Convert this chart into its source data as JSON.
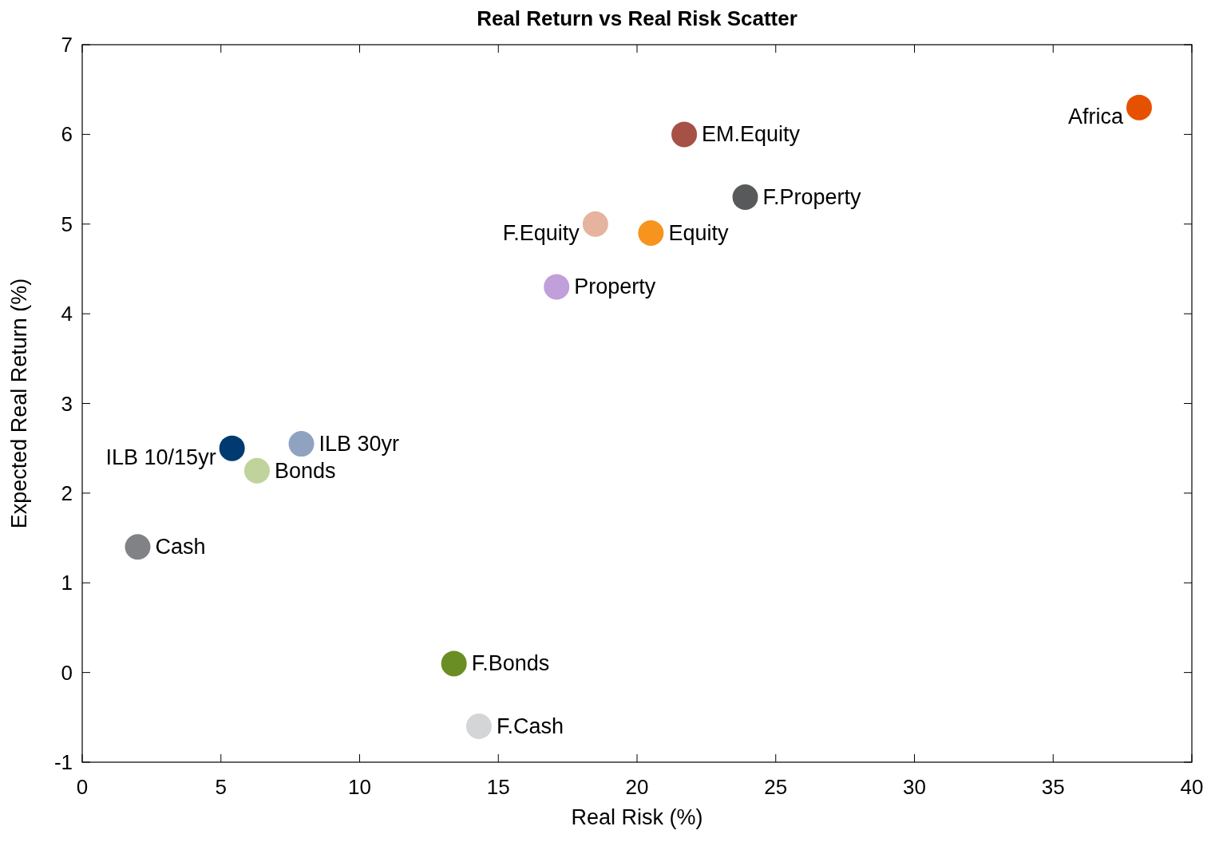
{
  "chart_data": {
    "type": "scatter",
    "title": "Real Return vs Real Risk Scatter",
    "xlabel": "Real Risk (%)",
    "ylabel": "Expected Real Return (%)",
    "xlim": [
      0,
      40
    ],
    "xticks": [
      0,
      5,
      10,
      15,
      20,
      25,
      30,
      35,
      40
    ],
    "ylim": [
      -1,
      7
    ],
    "yticks": [
      -1,
      0,
      1,
      2,
      3,
      4,
      5,
      6,
      7
    ],
    "marker": "circle",
    "series": [
      {
        "name": "Africa",
        "color": "#e65100",
        "x": [
          38.1
        ],
        "values": [
          6.3
        ]
      },
      {
        "name": "EM.Equity",
        "color": "#a65046",
        "x": [
          21.7
        ],
        "values": [
          6.0
        ]
      },
      {
        "name": "F.Property",
        "color": "#58595b",
        "x": [
          23.9
        ],
        "values": [
          5.3
        ]
      },
      {
        "name": "F.Equity",
        "color": "#e5b49f",
        "x": [
          18.5
        ],
        "values": [
          5.0
        ]
      },
      {
        "name": "Equity",
        "color": "#f7941d",
        "x": [
          20.5
        ],
        "values": [
          4.9
        ]
      },
      {
        "name": "Property",
        "color": "#c09fdb",
        "x": [
          17.1
        ],
        "values": [
          4.3
        ]
      },
      {
        "name": "ILB 10/15yr",
        "color": "#003a70",
        "x": [
          5.4
        ],
        "values": [
          2.5
        ]
      },
      {
        "name": "ILB 30yr",
        "color": "#8fa3c1",
        "x": [
          7.9
        ],
        "values": [
          2.55
        ]
      },
      {
        "name": "Bonds",
        "color": "#c0d39c",
        "x": [
          6.3
        ],
        "values": [
          2.25
        ]
      },
      {
        "name": "Cash",
        "color": "#808285",
        "x": [
          2.0
        ],
        "values": [
          1.4
        ]
      },
      {
        "name": "F.Bonds",
        "color": "#6a8e23",
        "x": [
          13.4
        ],
        "values": [
          0.1
        ]
      },
      {
        "name": "F.Cash",
        "color": "#d4d5d6",
        "x": [
          14.3
        ],
        "values": [
          -0.6
        ]
      }
    ]
  }
}
